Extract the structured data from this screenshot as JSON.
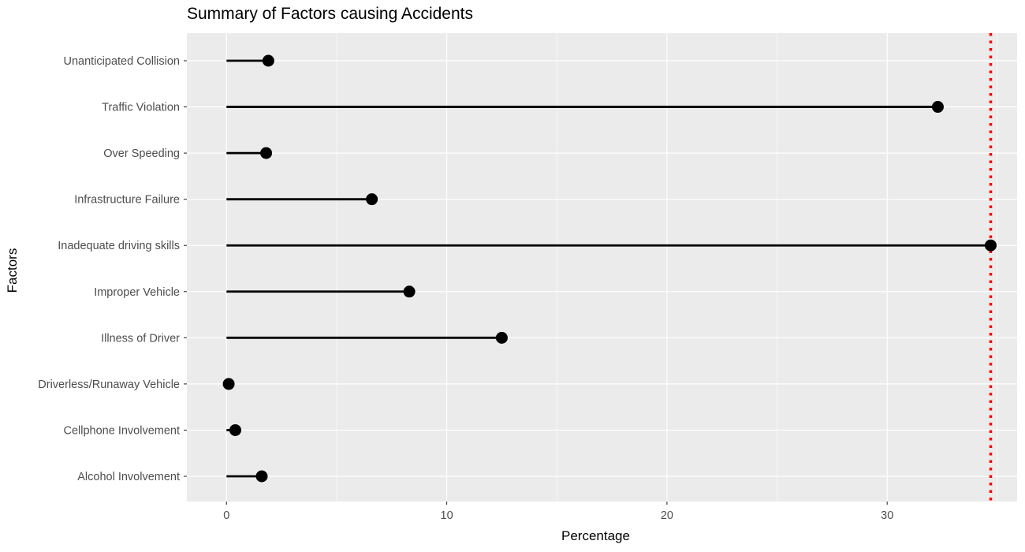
{
  "chart_data": {
    "type": "lollipop",
    "title": "Summary of Factors causing Accidents",
    "xlabel": "Percentage",
    "ylabel": "Factors",
    "xlim": [
      -1.8,
      35.9
    ],
    "x_ticks": [
      0,
      10,
      20,
      30
    ],
    "categories": [
      "Alcohol Involvement",
      "Cellphone Involvement",
      "Driverless/Runaway Vehicle",
      "Illness of Driver",
      "Improper Vehicle",
      "Inadequate driving skills",
      "Infrastructure Failure",
      "Over Speeding",
      "Traffic Violation",
      "Unanticipated Collision"
    ],
    "values": [
      1.6,
      0.4,
      0.1,
      12.5,
      8.3,
      34.7,
      6.6,
      1.8,
      32.3,
      1.9
    ],
    "reference_line": {
      "value": 34.7,
      "style": "dotted",
      "color": "#ff0000"
    },
    "grid": true,
    "legend": "none",
    "colors": {
      "panel": "#ebebeb",
      "grid": "#ffffff",
      "stem": "#000000",
      "point": "#000000",
      "tick_text": "#4d4d4d"
    }
  }
}
